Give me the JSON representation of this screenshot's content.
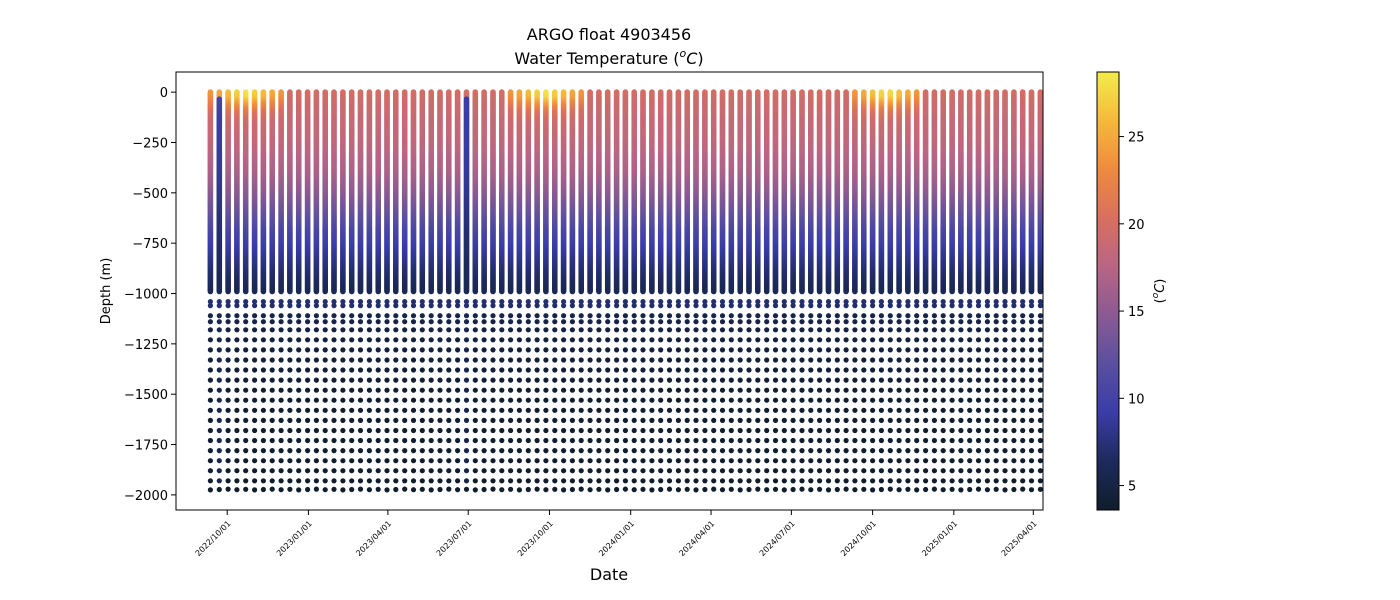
{
  "chart_data": {
    "type": "scatter",
    "title_line1": "ARGO float 4903456",
    "title_line2_prefix": "Water Temperature (",
    "title_unit_sup": "o",
    "title_unit_main": "C",
    "title_line2_suffix": ")",
    "xlabel": "Date",
    "ylabel": "Depth (m)",
    "colorbar_label_prefix": "(",
    "colorbar_label_sup": "o",
    "colorbar_label_main": "C",
    "colorbar_label_suffix": ")",
    "xlim": [
      "2022-08-04",
      "2025-04-12"
    ],
    "ylim": [
      -2075,
      100
    ],
    "x_ticks": [
      "2022/10/01",
      "2023/01/01",
      "2023/04/01",
      "2023/07/01",
      "2023/10/01",
      "2024/01/01",
      "2024/04/01",
      "2024/07/01",
      "2024/10/01",
      "2025/01/01",
      "2025/04/01"
    ],
    "y_ticks": [
      0,
      -250,
      -500,
      -750,
      -1000,
      -1250,
      -1500,
      -1750,
      -2000
    ],
    "colorbar_ticks": [
      5,
      10,
      15,
      20,
      25
    ],
    "colorbar_range": [
      3.6,
      28.7
    ],
    "colormap": [
      "#0f1d2c",
      "#1d2a5c",
      "#3a3da8",
      "#5a4fa0",
      "#8a5a92",
      "#b86585",
      "#d96f5e",
      "#ef8a3f",
      "#f6b93a",
      "#f2ec4c"
    ],
    "profile_start_date": "2022-09-12",
    "profile_interval_days": 10,
    "profile_count": 96,
    "warm_profile_ranges": [
      [
        0,
        8
      ],
      [
        34,
        42
      ],
      [
        73,
        80
      ]
    ],
    "anomalous_profiles": [
      1,
      29
    ],
    "mid_dot_layer_depths": [
      -1040,
      -1060
    ],
    "profile_temperature_by_depth": {
      "depth": [
        0,
        -30,
        -60,
        -100,
        -150,
        -250,
        -400,
        -500,
        -600,
        -700,
        -800,
        -900,
        -1000,
        -1200,
        -1500,
        -2000
      ],
      "temp_typical": [
        20,
        19.6,
        19.3,
        19.0,
        18.7,
        18.2,
        16.8,
        15.0,
        12.9,
        10.5,
        8.7,
        7.0,
        5.8,
        4.8,
        3.9,
        3.6
      ],
      "temp_warm": [
        28.3,
        27.8,
        25.0,
        21.5,
        19.5,
        18.4,
        16.8,
        15.0,
        12.9,
        10.5,
        8.7,
        7.0,
        5.8,
        4.8,
        3.9,
        3.6
      ]
    },
    "deep_point_depths": [
      -1110,
      -1140,
      -1180,
      -1230,
      -1280,
      -1330,
      -1380,
      -1430,
      -1480,
      -1530,
      -1580,
      -1630,
      -1680,
      -1730,
      -1780,
      -1830,
      -1880,
      -1930
    ]
  }
}
